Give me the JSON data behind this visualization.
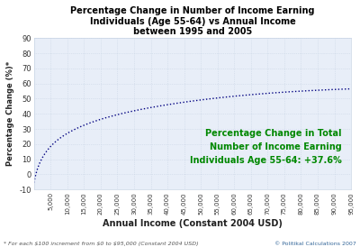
{
  "title": "Percentage Change in Number of Income Earning\nIndividuals (Age 55-64) vs Annual Income\nbetween 1995 and 2005",
  "xlabel": "Annual Income (Constant 2004 USD)",
  "ylabel": "Percentage Change (%)*",
  "annotation": "Percentage Change in Total\nNumber of Income Earning\nIndividuals Age 55-64: +37.6%",
  "annotation_color": "#008800",
  "footnote_left": "* For each $100 increment from $0 to $95,000 (Constant 2004 USD)",
  "footnote_right": "© Politikal Calculations 2007",
  "line_color": "#000080",
  "bg_color": "#ffffff",
  "plot_bg_color": "#e8eef8",
  "grid_color": "#c8d4e4",
  "x_start": 0,
  "x_end": 95000,
  "x_step": 100,
  "ylim": [
    -10,
    90
  ],
  "xlim": [
    0,
    95000
  ],
  "xtick_step": 5000,
  "title_fontsize": 7,
  "xlabel_fontsize": 7,
  "ylabel_fontsize": 6,
  "xtick_fontsize": 5,
  "ytick_fontsize": 6,
  "annotation_fontsize": 7,
  "footnote_fontsize": 4.5
}
